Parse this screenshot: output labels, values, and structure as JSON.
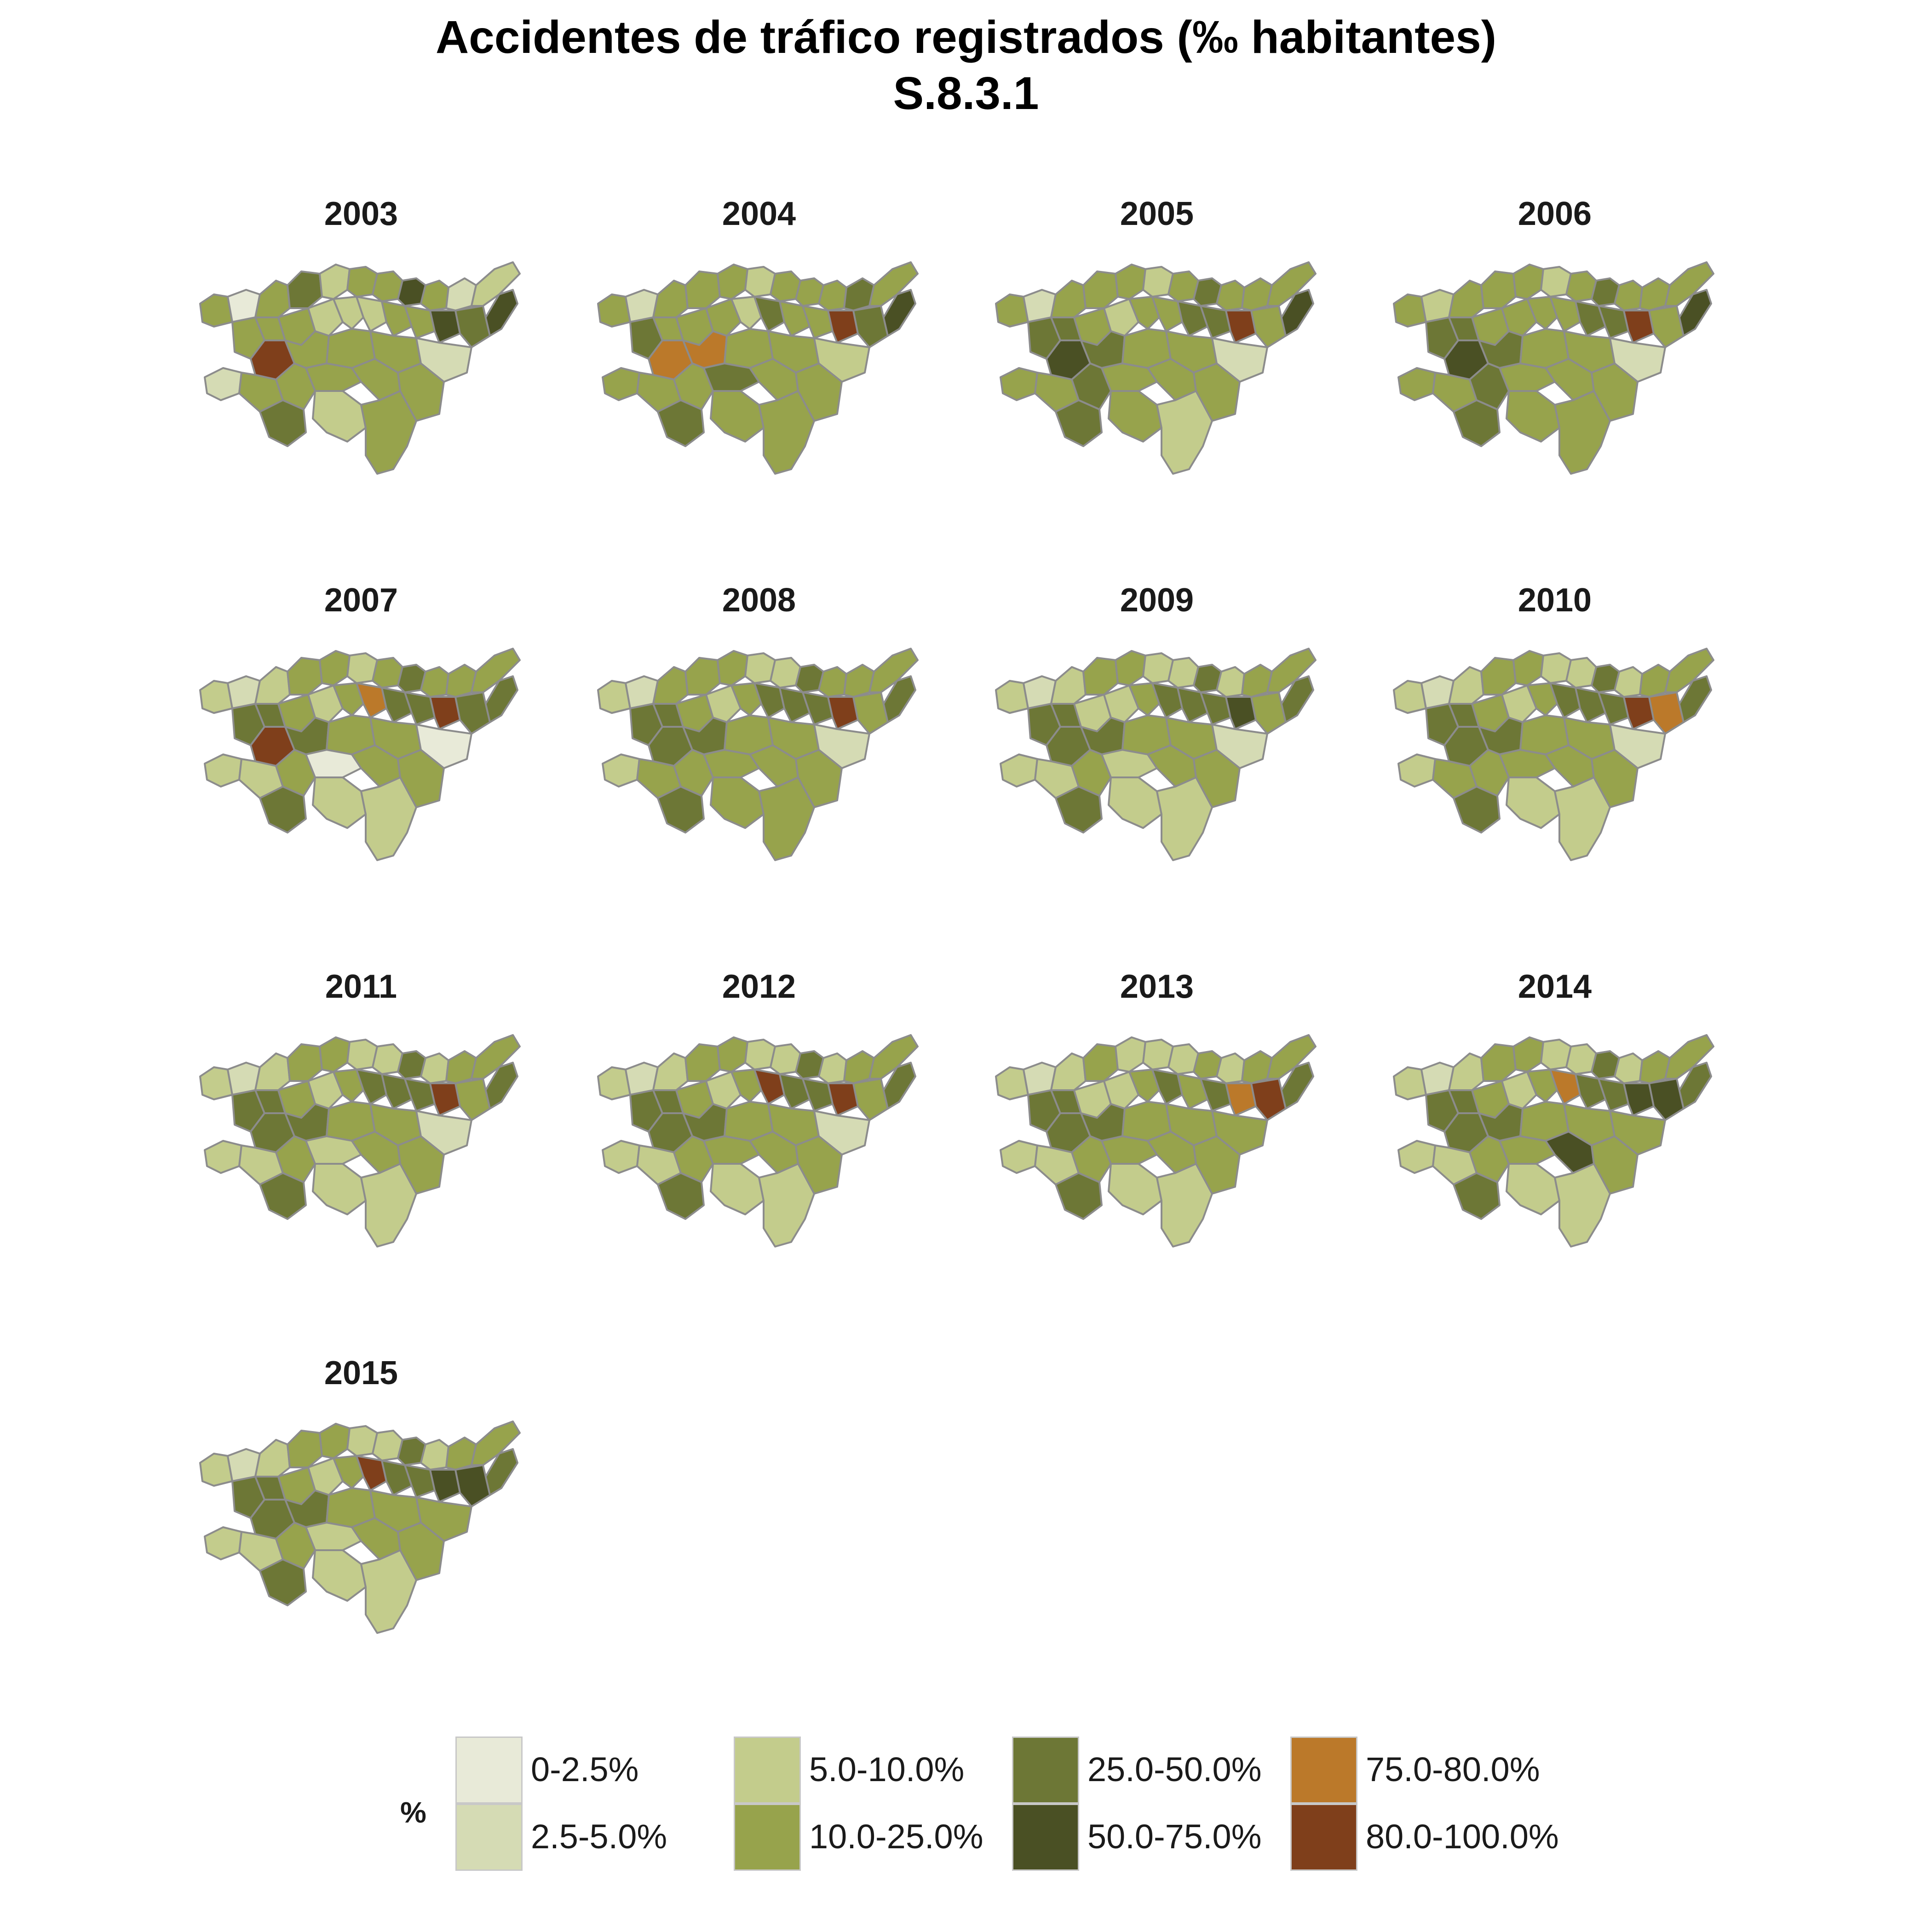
{
  "title": {
    "line1": "Accidentes de tráfico registrados (‰ habitantes)",
    "line2": "S.8.3.1"
  },
  "legend": {
    "title": "%",
    "classes": [
      {
        "label": "0-2.5%",
        "color": "#e8ead8"
      },
      {
        "label": "2.5-5.0%",
        "color": "#d5dbb4"
      },
      {
        "label": "5.0-10.0%",
        "color": "#c3cc8c"
      },
      {
        "label": "10.0-25.0%",
        "color": "#97a34c"
      },
      {
        "label": "25.0-50.0%",
        "color": "#6d7736"
      },
      {
        "label": "50.0-75.0%",
        "color": "#4a5024"
      },
      {
        "label": "75.0-80.0%",
        "color": "#bb792a"
      },
      {
        "label": "80.0-100.0%",
        "color": "#7f3f1b"
      }
    ]
  },
  "panels": [
    {
      "year": "2003",
      "classes": [
        3,
        0,
        3,
        4,
        2,
        3,
        3,
        5,
        3,
        1,
        2,
        5,
        3,
        3,
        3,
        2,
        2,
        2,
        3,
        3,
        5,
        4,
        7,
        3,
        3,
        3,
        1,
        1,
        3,
        3,
        3,
        3,
        3,
        4,
        2,
        3
      ]
    },
    {
      "year": "2004",
      "classes": [
        3,
        1,
        3,
        3,
        3,
        2,
        3,
        3,
        3,
        4,
        3,
        5,
        4,
        3,
        3,
        3,
        2,
        4,
        3,
        3,
        7,
        4,
        6,
        6,
        3,
        3,
        2,
        3,
        3,
        3,
        4,
        3,
        3,
        4,
        3,
        3
      ]
    },
    {
      "year": "2005",
      "classes": [
        3,
        1,
        3,
        3,
        3,
        2,
        3,
        4,
        3,
        3,
        3,
        5,
        4,
        4,
        3,
        2,
        3,
        3,
        4,
        4,
        7,
        3,
        5,
        4,
        3,
        3,
        1,
        3,
        3,
        4,
        3,
        3,
        3,
        4,
        3,
        2
      ]
    },
    {
      "year": "2006",
      "classes": [
        3,
        2,
        3,
        3,
        3,
        2,
        3,
        4,
        3,
        3,
        3,
        5,
        4,
        4,
        3,
        3,
        3,
        3,
        4,
        4,
        7,
        3,
        5,
        4,
        3,
        3,
        1,
        3,
        3,
        4,
        3,
        3,
        3,
        4,
        3,
        3
      ]
    },
    {
      "year": "2007",
      "classes": [
        2,
        1,
        2,
        3,
        3,
        2,
        3,
        4,
        3,
        3,
        3,
        4,
        4,
        4,
        3,
        2,
        3,
        6,
        4,
        4,
        7,
        4,
        7,
        4,
        3,
        3,
        0,
        2,
        2,
        3,
        0,
        3,
        3,
        4,
        2,
        2
      ]
    },
    {
      "year": "2008",
      "classes": [
        2,
        1,
        3,
        3,
        3,
        2,
        2,
        4,
        3,
        3,
        3,
        4,
        4,
        4,
        3,
        2,
        3,
        4,
        4,
        4,
        7,
        3,
        4,
        4,
        3,
        3,
        1,
        2,
        3,
        3,
        3,
        3,
        3,
        4,
        3,
        3
      ]
    },
    {
      "year": "2009",
      "classes": [
        2,
        1,
        2,
        3,
        3,
        2,
        2,
        4,
        2,
        3,
        3,
        4,
        4,
        4,
        2,
        2,
        3,
        4,
        4,
        4,
        5,
        3,
        4,
        4,
        3,
        3,
        1,
        2,
        2,
        3,
        2,
        3,
        3,
        4,
        2,
        2
      ]
    },
    {
      "year": "2010",
      "classes": [
        2,
        1,
        2,
        3,
        3,
        2,
        2,
        4,
        2,
        3,
        3,
        4,
        4,
        4,
        3,
        2,
        3,
        4,
        4,
        4,
        7,
        6,
        4,
        4,
        3,
        3,
        1,
        2,
        3,
        3,
        3,
        3,
        3,
        4,
        2,
        2
      ]
    },
    {
      "year": "2011",
      "classes": [
        2,
        1,
        2,
        3,
        3,
        2,
        2,
        4,
        2,
        3,
        3,
        4,
        4,
        4,
        3,
        2,
        3,
        4,
        4,
        4,
        7,
        3,
        4,
        4,
        3,
        3,
        1,
        2,
        2,
        3,
        2,
        3,
        3,
        4,
        2,
        2
      ]
    },
    {
      "year": "2012",
      "classes": [
        2,
        1,
        2,
        3,
        3,
        2,
        2,
        4,
        2,
        3,
        3,
        4,
        4,
        4,
        3,
        2,
        3,
        7,
        4,
        4,
        7,
        3,
        4,
        4,
        3,
        3,
        1,
        2,
        2,
        3,
        3,
        3,
        3,
        4,
        2,
        2
      ]
    },
    {
      "year": "2013",
      "classes": [
        2,
        1,
        2,
        3,
        2,
        2,
        2,
        3,
        2,
        3,
        3,
        4,
        4,
        4,
        2,
        2,
        3,
        4,
        3,
        4,
        6,
        7,
        4,
        4,
        3,
        3,
        3,
        2,
        2,
        3,
        3,
        3,
        3,
        4,
        2,
        2
      ]
    },
    {
      "year": "2014",
      "classes": [
        2,
        1,
        2,
        3,
        3,
        2,
        2,
        4,
        2,
        3,
        3,
        4,
        4,
        4,
        3,
        2,
        3,
        6,
        4,
        4,
        5,
        5,
        4,
        4,
        3,
        3,
        3,
        2,
        2,
        3,
        3,
        5,
        3,
        4,
        2,
        2
      ]
    },
    {
      "year": "2015",
      "classes": [
        2,
        1,
        2,
        3,
        3,
        2,
        2,
        4,
        2,
        3,
        3,
        4,
        4,
        4,
        3,
        2,
        3,
        7,
        4,
        4,
        5,
        5,
        4,
        4,
        3,
        3,
        3,
        2,
        2,
        3,
        2,
        3,
        3,
        4,
        2,
        2
      ]
    }
  ]
}
